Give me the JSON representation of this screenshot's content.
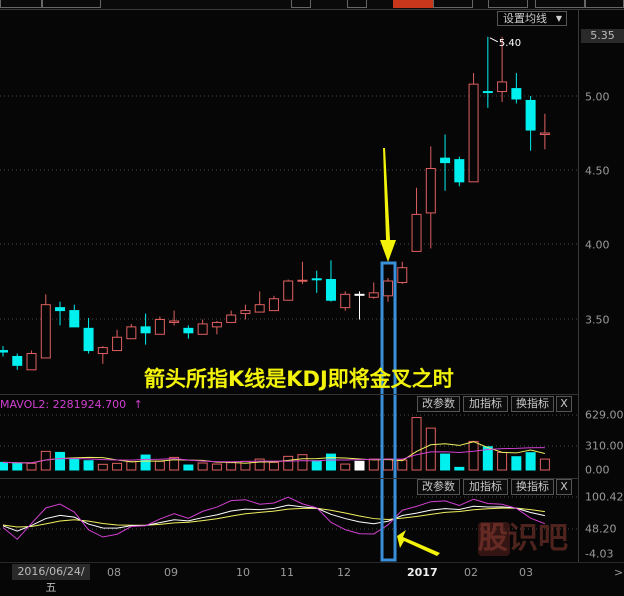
{
  "toolbar": {
    "tabs": [
      "",
      "",
      "",
      "",
      "",
      "",
      "",
      "",
      ""
    ],
    "active_index": 4
  },
  "main": {
    "set_ma_label": "设置均线",
    "current_price_label": "5.35",
    "high_marker": "5.40",
    "price_axis": [
      "5.00",
      "4.50",
      "4.00",
      "3.50"
    ],
    "annotation": "箭头所指K线是KDJ即将金叉之时",
    "highlighted_bar_index": 27
  },
  "volume_panel": {
    "title": "MAVOL2: 2281924.700",
    "arrow": "↑",
    "axis": [
      "629.00",
      "310.00",
      "0.00"
    ],
    "buttons": {
      "edit": "改参数",
      "add": "加指标",
      "switch": "换指标",
      "close": "X"
    }
  },
  "kdj_panel": {
    "axis": [
      "100.42",
      "48.20",
      "-4.03"
    ],
    "buttons": {
      "edit": "改参数",
      "add": "加指标",
      "switch": "换指标",
      "close": "X"
    }
  },
  "date_axis": {
    "first": "2016/06/24/五",
    "labels": [
      "08",
      "09",
      "10",
      "11",
      "12",
      "2017",
      "02",
      "03"
    ],
    "next": ">"
  },
  "watermark": "股识吧",
  "colors": {
    "up": "#e06060",
    "down": "#00f0f0",
    "doji_flat": "#ffffff",
    "highlight_box": "#3a8fd8",
    "arrow": "#f2f20a",
    "ma1": "#f0f060",
    "ma2": "#d040d0",
    "k": "#ffffff",
    "d": "#f0f060",
    "j": "#d040d0"
  },
  "chart_data": {
    "type": "candlestick",
    "ylim": [
      3.15,
      5.4
    ],
    "ohlc": [
      [
        3.28,
        3.31,
        3.24,
        3.27
      ],
      [
        3.24,
        3.26,
        3.15,
        3.18
      ],
      [
        3.15,
        3.28,
        3.15,
        3.26
      ],
      [
        3.23,
        3.66,
        3.23,
        3.59
      ],
      [
        3.57,
        3.61,
        3.45,
        3.55
      ],
      [
        3.55,
        3.59,
        3.44,
        3.44
      ],
      [
        3.43,
        3.5,
        3.26,
        3.28
      ],
      [
        3.26,
        3.31,
        3.19,
        3.3
      ],
      [
        3.28,
        3.42,
        3.28,
        3.37
      ],
      [
        3.36,
        3.46,
        3.36,
        3.44
      ],
      [
        3.44,
        3.53,
        3.32,
        3.4
      ],
      [
        3.39,
        3.51,
        3.39,
        3.49
      ],
      [
        3.47,
        3.55,
        3.45,
        3.48
      ],
      [
        3.43,
        3.45,
        3.36,
        3.4
      ],
      [
        3.39,
        3.49,
        3.39,
        3.46
      ],
      [
        3.44,
        3.48,
        3.39,
        3.47
      ],
      [
        3.47,
        3.55,
        3.47,
        3.52
      ],
      [
        3.53,
        3.59,
        3.49,
        3.55
      ],
      [
        3.54,
        3.68,
        3.54,
        3.59
      ],
      [
        3.55,
        3.65,
        3.55,
        3.63
      ],
      [
        3.62,
        3.76,
        3.62,
        3.75
      ],
      [
        3.75,
        3.88,
        3.73,
        3.755
      ],
      [
        3.765,
        3.82,
        3.67,
        3.76
      ],
      [
        3.76,
        3.89,
        3.61,
        3.62
      ],
      [
        3.57,
        3.68,
        3.55,
        3.66
      ],
      [
        3.66,
        3.68,
        3.49,
        3.66
      ],
      [
        3.64,
        3.74,
        3.63,
        3.67
      ],
      [
        3.65,
        3.77,
        3.61,
        3.75
      ],
      [
        3.74,
        3.88,
        3.73,
        3.84
      ],
      [
        3.95,
        4.38,
        3.95,
        4.2
      ],
      [
        4.21,
        4.66,
        3.97,
        4.51
      ],
      [
        4.58,
        4.74,
        4.36,
        4.55
      ],
      [
        4.57,
        4.59,
        4.39,
        4.42
      ],
      [
        4.42,
        5.155,
        4.42,
        5.08
      ],
      [
        5.03,
        5.4,
        4.92,
        5.025
      ],
      [
        5.03,
        5.4,
        4.96,
        5.095
      ],
      [
        5.05,
        5.155,
        4.95,
        4.98
      ],
      [
        4.97,
        5.0,
        4.63,
        4.77
      ],
      [
        4.74,
        4.88,
        4.64,
        4.75
      ]
    ],
    "volume": [
      87,
      80,
      76,
      213,
      201,
      125,
      106,
      65,
      76,
      95,
      171,
      99,
      144,
      57,
      80,
      68,
      84,
      99,
      125,
      87,
      156,
      175,
      106,
      182,
      68,
      99,
      125,
      125,
      114,
      600,
      479,
      182,
      30,
      327,
      266,
      201,
      152,
      198,
      125
    ],
    "volume_ylim": [
      0,
      629
    ],
    "kdj_ylim": [
      -4.03,
      100.42
    ]
  }
}
